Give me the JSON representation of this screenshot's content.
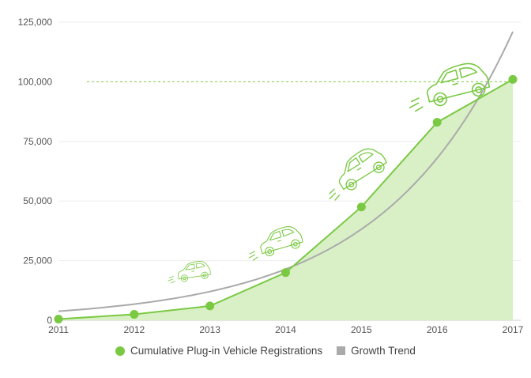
{
  "chart_data": {
    "type": "line",
    "title": "",
    "xlabel": "",
    "ylabel": "",
    "x": [
      "2011",
      "2012",
      "2013",
      "2014",
      "2015",
      "2016",
      "2017"
    ],
    "ylim": [
      0,
      125000
    ],
    "yticks": [
      0,
      25000,
      50000,
      75000,
      100000,
      125000
    ],
    "ytick_labels": [
      "0",
      "25,000",
      "50,000",
      "75,000",
      "100,000",
      "125,000"
    ],
    "grid": true,
    "reference_line": {
      "value": 100000,
      "style": "dashed",
      "color": "#7ac943"
    },
    "series": [
      {
        "name": "Cumulative Plug-in Vehicle Registrations",
        "values": [
          500,
          2500,
          6000,
          20000,
          47500,
          83000,
          101000
        ],
        "color": "#7ac943",
        "fill": "#d9f0c6",
        "marker": "circle"
      },
      {
        "name": "Growth Trend",
        "values": [
          3800,
          6800,
          12000,
          21600,
          38900,
          69900,
          121000
        ],
        "color": "#aaaaaa",
        "style": "smooth"
      }
    ],
    "legend": "bottom-center",
    "decorations": [
      "car-icon",
      "car-icon",
      "car-icon",
      "car-icon"
    ]
  }
}
